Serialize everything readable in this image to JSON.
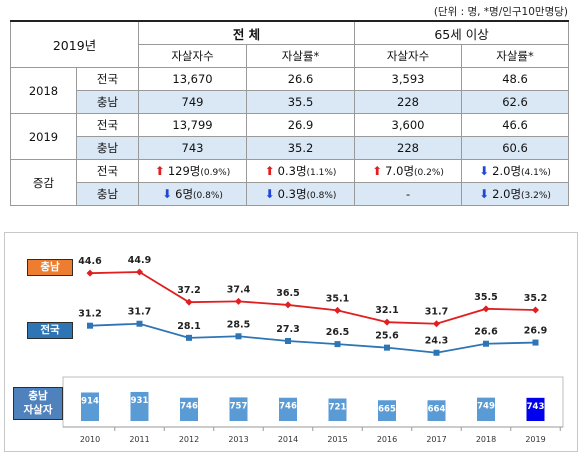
{
  "unit_note": "(단위 : 명, *명/인구10만명당)",
  "table": {
    "corner": "2019년",
    "group_total": "전 체",
    "group_65": "65세 이상",
    "col1": "자살자수",
    "col2": "자살률*",
    "col3": "자살자수",
    "col4": "자살률*",
    "rows": [
      {
        "year": "2018",
        "region": "전국",
        "c1": "13,670",
        "c2": "26.6",
        "c3": "3,593",
        "c4": "48.6"
      },
      {
        "year": "",
        "region": "충남",
        "c1": "749",
        "c2": "35.5",
        "c3": "228",
        "c4": "62.6"
      },
      {
        "year": "2019",
        "region": "전국",
        "c1": "13,799",
        "c2": "26.9",
        "c3": "3,600",
        "c4": "46.6"
      },
      {
        "year": "",
        "region": "충남",
        "c1": "743",
        "c2": "35.2",
        "c3": "228",
        "c4": "60.6"
      }
    ],
    "change": {
      "label": "증감",
      "national": {
        "region": "전국",
        "c1": "129명",
        "c1p": "(0.9%)",
        "c2": "0.3명",
        "c2p": "(1.1%)",
        "c3": "7.0명",
        "c3p": "(0.2%)",
        "c4": "2.0명",
        "c4p": "(4.1%)"
      },
      "chungnam": {
        "region": "충남",
        "c1": "6명",
        "c1p": "(0.8%)",
        "c2": "0.3명",
        "c2p": "(0.8%)",
        "c3": "-",
        "c4": "2.0명",
        "c4p": "(3.2%)"
      }
    }
  },
  "labels": {
    "chungnam_tag": "충남",
    "national_tag": "전국",
    "deaths_tag_line1": "충남",
    "deaths_tag_line2": "자살자"
  },
  "colors": {
    "chungnam_line": "#e02020",
    "national_line": "#2e75b6",
    "bar": "#5b9bd5",
    "bar_highlight": "#0000ee",
    "chungnam_tag_bg": "#ed7d31",
    "national_tag_bg": "#2e75b6",
    "deaths_tag_bg": "#4f81bd"
  },
  "chart_data": {
    "type": "line+bar",
    "x": [
      "2010",
      "2011",
      "2012",
      "2013",
      "2014",
      "2015",
      "2016",
      "2017",
      "2018",
      "2019"
    ],
    "series": [
      {
        "name": "충남",
        "type": "line",
        "values": [
          44.6,
          44.9,
          37.2,
          37.4,
          36.5,
          35.1,
          32.1,
          31.7,
          35.5,
          35.2
        ]
      },
      {
        "name": "전국",
        "type": "line",
        "values": [
          31.2,
          31.7,
          28.1,
          28.5,
          27.3,
          26.5,
          25.6,
          24.3,
          26.6,
          26.9
        ]
      },
      {
        "name": "충남 자살자",
        "type": "bar",
        "values": [
          914,
          931,
          746,
          757,
          746,
          721,
          665,
          664,
          749,
          743
        ]
      }
    ],
    "grid": false,
    "legend": "left-side tags"
  }
}
